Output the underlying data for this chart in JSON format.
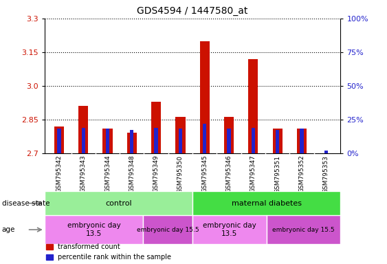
{
  "title": "GDS4594 / 1447580_at",
  "samples": [
    "GSM795342",
    "GSM795343",
    "GSM795344",
    "GSM795348",
    "GSM795349",
    "GSM795350",
    "GSM795345",
    "GSM795346",
    "GSM795347",
    "GSM795351",
    "GSM795352",
    "GSM795353"
  ],
  "transformed_count": [
    2.82,
    2.91,
    2.81,
    2.79,
    2.93,
    2.86,
    3.2,
    2.86,
    3.12,
    2.81,
    2.81,
    2.7
  ],
  "percentile_rank_pct": [
    18,
    19,
    18,
    17,
    19,
    18,
    22,
    18,
    19,
    17,
    18,
    2
  ],
  "y_min": 2.7,
  "y_max": 3.3,
  "y_ticks": [
    2.7,
    2.85,
    3.0,
    3.15,
    3.3
  ],
  "y2_ticks_pct": [
    0,
    25,
    50,
    75,
    100
  ],
  "bar_color_red": "#cc1100",
  "bar_color_blue": "#2222cc",
  "disease_state_groups": [
    {
      "label": "control",
      "start": 0,
      "end": 6,
      "color": "#99ee99"
    },
    {
      "label": "maternal diabetes",
      "start": 6,
      "end": 12,
      "color": "#44dd44"
    }
  ],
  "age_groups": [
    {
      "label": "embryonic day\n13.5",
      "start": 0,
      "end": 4,
      "color": "#ee88ee"
    },
    {
      "label": "embryonic day 15.5",
      "start": 4,
      "end": 6,
      "color": "#cc55cc"
    },
    {
      "label": "embryonic day\n13.5",
      "start": 6,
      "end": 9,
      "color": "#ee88ee"
    },
    {
      "label": "embryonic day 15.5",
      "start": 9,
      "end": 12,
      "color": "#cc55cc"
    }
  ],
  "tick_label_color": "#cc1100",
  "y2_tick_color": "#2222cc",
  "bar_width": 0.4,
  "blue_bar_width": 0.15,
  "baseline": 2.7,
  "xtick_bg_color": "#cccccc"
}
